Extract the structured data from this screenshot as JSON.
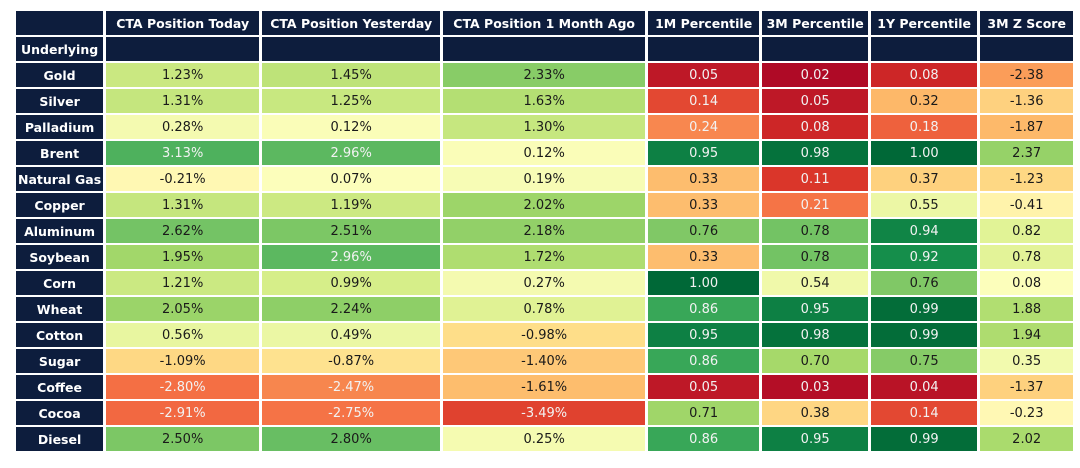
{
  "chart_data": {
    "type": "table",
    "subtype": "heatmap",
    "index_label": "Underlying",
    "columns": [
      "CTA Position Today",
      "CTA Position Yesterday",
      "CTA Position 1 Month Ago",
      "1M Percentile",
      "3M Percentile",
      "1Y Percentile",
      "3M Z Score"
    ],
    "rows": [
      "Gold",
      "Silver",
      "Palladium",
      "Brent",
      "Natural Gas",
      "Copper",
      "Aluminum",
      "Soybean",
      "Corn",
      "Wheat",
      "Cotton",
      "Sugar",
      "Coffee",
      "Cocoa",
      "Diesel"
    ],
    "cells": [
      [
        "1.23%",
        "1.45%",
        "2.33%",
        "0.05",
        "0.02",
        "0.08",
        "-2.38"
      ],
      [
        "1.31%",
        "1.25%",
        "1.63%",
        "0.14",
        "0.05",
        "0.32",
        "-1.36"
      ],
      [
        "0.28%",
        "0.12%",
        "1.30%",
        "0.24",
        "0.08",
        "0.18",
        "-1.87"
      ],
      [
        "3.13%",
        "2.96%",
        "0.12%",
        "0.95",
        "0.98",
        "1.00",
        "2.37"
      ],
      [
        "-0.21%",
        "0.07%",
        "0.19%",
        "0.33",
        "0.11",
        "0.37",
        "-1.23"
      ],
      [
        "1.31%",
        "1.19%",
        "2.02%",
        "0.33",
        "0.21",
        "0.55",
        "-0.41"
      ],
      [
        "2.62%",
        "2.51%",
        "2.18%",
        "0.76",
        "0.78",
        "0.94",
        "0.82"
      ],
      [
        "1.95%",
        "2.96%",
        "1.72%",
        "0.33",
        "0.78",
        "0.92",
        "0.78"
      ],
      [
        "1.21%",
        "0.99%",
        "0.27%",
        "1.00",
        "0.54",
        "0.76",
        "0.08"
      ],
      [
        "2.05%",
        "2.24%",
        "0.78%",
        "0.86",
        "0.95",
        "0.99",
        "1.88"
      ],
      [
        "0.56%",
        "0.49%",
        "-0.98%",
        "0.95",
        "0.98",
        "0.99",
        "1.94"
      ],
      [
        "-1.09%",
        "-0.87%",
        "-1.40%",
        "0.86",
        "0.70",
        "0.75",
        "0.35"
      ],
      [
        "-2.80%",
        "-2.47%",
        "-1.61%",
        "0.05",
        "0.03",
        "0.04",
        "-1.37"
      ],
      [
        "-2.91%",
        "-2.75%",
        "-3.49%",
        "0.71",
        "0.38",
        "0.14",
        "-0.23"
      ],
      [
        "2.50%",
        "2.80%",
        "0.25%",
        "0.86",
        "0.95",
        "0.99",
        "2.02"
      ]
    ],
    "heatmap": {
      "colormap": "RdYlGn",
      "stops": [
        "#a50026",
        "#d73027",
        "#f46d43",
        "#fdae61",
        "#fee08b",
        "#ffffbf",
        "#d9ef8b",
        "#a6d96a",
        "#66bd63",
        "#1a9850",
        "#006837"
      ],
      "column_scales": [
        {
          "kind": "position",
          "offset": 0.5,
          "slope": 0.106
        },
        {
          "kind": "position",
          "offset": 0.5,
          "slope": 0.106
        },
        {
          "kind": "position",
          "offset": 0.5,
          "slope": 0.106
        },
        {
          "kind": "percentile",
          "offset": 0.0,
          "slope": 1.0
        },
        {
          "kind": "percentile",
          "offset": 0.0,
          "slope": 1.0
        },
        {
          "kind": "percentile",
          "offset": 0.0,
          "slope": 1.0
        },
        {
          "kind": "zscore",
          "offset": 0.5,
          "slope": 0.095
        }
      ],
      "luminance_threshold": 0.38,
      "text_dark": "#1a1a1a",
      "text_light": "#f2f2f2"
    },
    "style": {
      "header_bg": "#0d1d3d",
      "header_text": "#ffffff",
      "grid_color": "#ffffff",
      "page_bg": "#ffffff"
    }
  }
}
